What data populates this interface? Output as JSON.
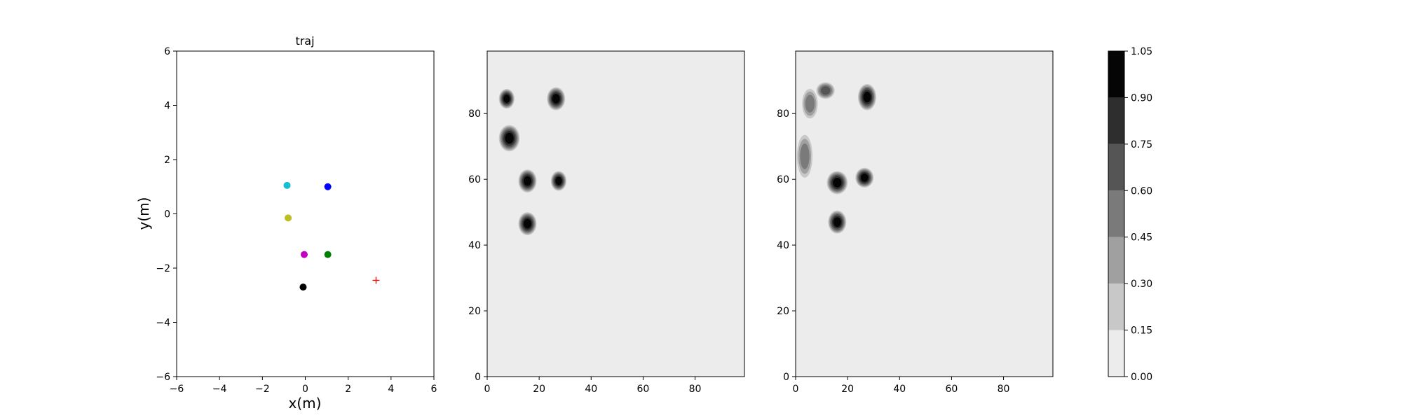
{
  "chart_data": [
    {
      "type": "scatter",
      "title": "traj",
      "xlabel": "x(m)",
      "ylabel": "y(m)",
      "xlim": [
        -6,
        6
      ],
      "ylim": [
        -6,
        6
      ],
      "xticks": [
        -6,
        -4,
        -2,
        0,
        2,
        4,
        6
      ],
      "yticks": [
        -6,
        -4,
        -2,
        0,
        2,
        4,
        6
      ],
      "grid": false,
      "points": [
        {
          "x": -0.85,
          "y": 1.05,
          "color": "#17becf"
        },
        {
          "x": 1.05,
          "y": 1.0,
          "color": "#0000ff"
        },
        {
          "x": -0.8,
          "y": -0.15,
          "color": "#bcbd22"
        },
        {
          "x": -0.05,
          "y": -1.5,
          "color": "#bf00bf"
        },
        {
          "x": 1.05,
          "y": -1.5,
          "color": "#008000"
        },
        {
          "x": -0.1,
          "y": -2.7,
          "color": "#000000"
        }
      ],
      "goal": {
        "x": 3.3,
        "y": -2.45,
        "color": "#ff0000",
        "marker": "+"
      }
    },
    {
      "type": "heatmap",
      "title": "",
      "xlim": [
        0,
        99
      ],
      "ylim": [
        0,
        99
      ],
      "xticks": [
        0,
        20,
        40,
        60,
        80
      ],
      "yticks": [
        0,
        20,
        40,
        60,
        80
      ],
      "background": "#ececec",
      "blobs": [
        {
          "x": 7.5,
          "y": 84.5,
          "rx": 3,
          "ry": 3,
          "value": 1.0
        },
        {
          "x": 26.5,
          "y": 84.5,
          "rx": 3.5,
          "ry": 3.5,
          "value": 1.0
        },
        {
          "x": 8.5,
          "y": 72.5,
          "rx": 4,
          "ry": 4,
          "value": 1.0
        },
        {
          "x": 15.5,
          "y": 59.5,
          "rx": 3.5,
          "ry": 3.5,
          "value": 1.0
        },
        {
          "x": 27.5,
          "y": 59.5,
          "rx": 3,
          "ry": 3,
          "value": 1.0
        },
        {
          "x": 15.5,
          "y": 46.5,
          "rx": 3.5,
          "ry": 3.5,
          "value": 1.0
        }
      ]
    },
    {
      "type": "heatmap",
      "title": "",
      "xlim": [
        0,
        99
      ],
      "ylim": [
        0,
        99
      ],
      "xticks": [
        0,
        20,
        40,
        60,
        80
      ],
      "yticks": [
        0,
        20,
        40,
        60,
        80
      ],
      "background": "#ececec",
      "blobs": [
        {
          "x": 5.5,
          "y": 83,
          "rx": 3,
          "ry": 4.5,
          "value": 0.55
        },
        {
          "x": 11.5,
          "y": 87,
          "rx": 3.5,
          "ry": 2.5,
          "value": 0.6
        },
        {
          "x": 27.5,
          "y": 85,
          "rx": 3.5,
          "ry": 4,
          "value": 1.0
        },
        {
          "x": 3.5,
          "y": 67,
          "rx": 3,
          "ry": 6.5,
          "value": 0.45
        },
        {
          "x": 16,
          "y": 59,
          "rx": 4,
          "ry": 3.5,
          "value": 1.0
        },
        {
          "x": 26.5,
          "y": 60.5,
          "rx": 3.5,
          "ry": 3,
          "value": 1.0
        },
        {
          "x": 16,
          "y": 47,
          "rx": 3.5,
          "ry": 3.5,
          "value": 1.0
        }
      ]
    },
    {
      "type": "colorbar",
      "levels": [
        0.0,
        0.15,
        0.3,
        0.45,
        0.6,
        0.75,
        0.9,
        1.05
      ],
      "tick_labels": [
        "0.00",
        "0.15",
        "0.30",
        "0.45",
        "0.60",
        "0.75",
        "0.90",
        "1.05"
      ],
      "colors": [
        "#ececec",
        "#c8c8c8",
        "#a0a0a0",
        "#7a7a7a",
        "#555555",
        "#2e2e2e",
        "#050505"
      ]
    }
  ]
}
